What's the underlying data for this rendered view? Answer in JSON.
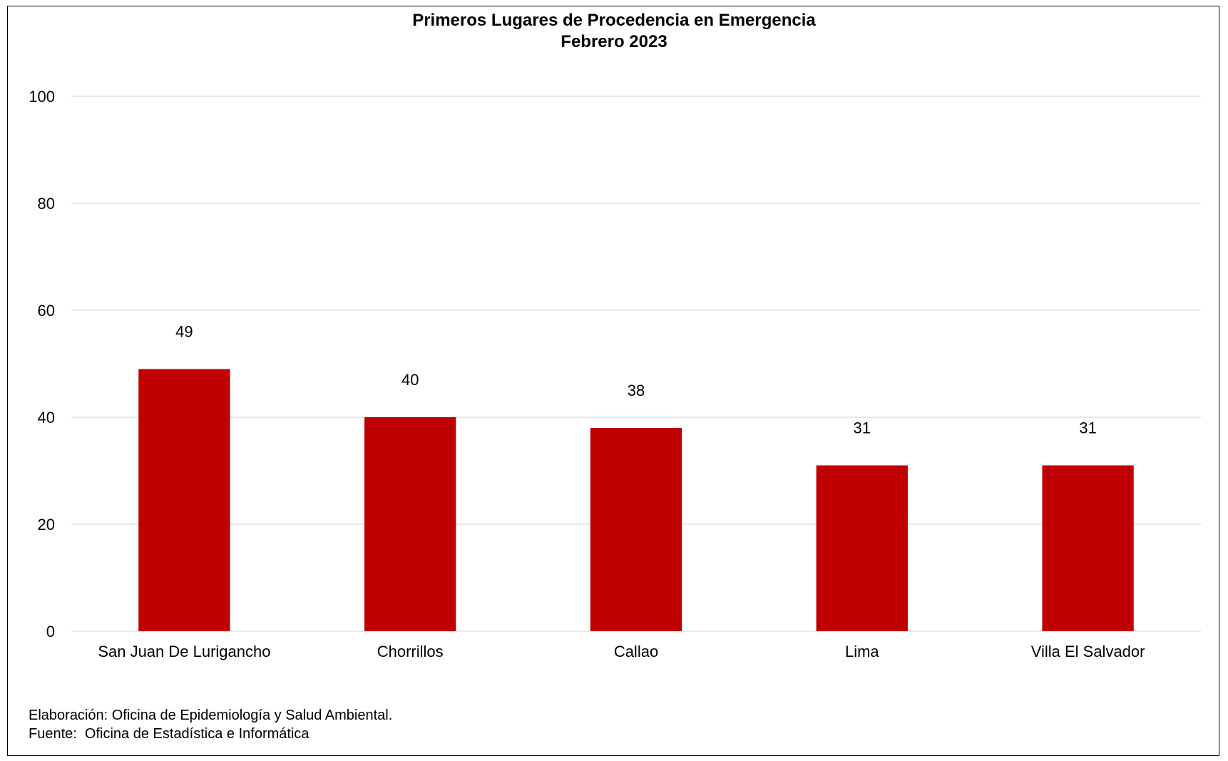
{
  "chart_data": {
    "type": "bar",
    "title": "Primeros Lugares de Procedencia en Emergencia",
    "subtitle": "Febrero 2023",
    "xlabel": "",
    "ylabel": "",
    "categories": [
      "San Juan De Lurigancho",
      "Chorrillos",
      "Callao",
      "Lima",
      "Villa El Salvador"
    ],
    "values": [
      49,
      40,
      38,
      31,
      31
    ],
    "ylim": [
      0,
      100
    ],
    "yticks": [
      "0",
      "20",
      "40",
      "60",
      "80",
      "100"
    ],
    "grid": true,
    "legend": "none",
    "bar_color": "#C00000",
    "grid_color": "#D9D9D9"
  },
  "footer": {
    "elaboracion": "Elaboración: Oficina de Epidemiología y Salud Ambiental.",
    "fuente": "Fuente:  Oficina de Estadística e Informática"
  }
}
